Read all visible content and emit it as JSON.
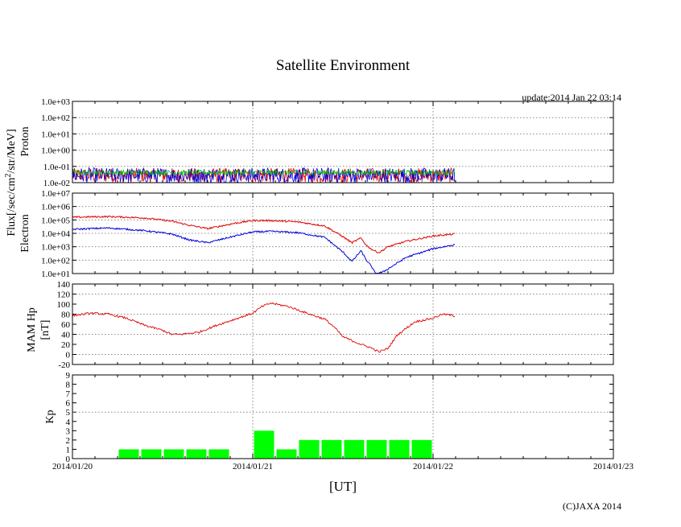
{
  "title": "Satellite Environment",
  "update": "update:2014 Jan 22 03:14",
  "copyright": "(C)JAXA 2014",
  "shared_ylabel": "Flux[/sec/cm<sup>2</sup>/str/MeV]",
  "shared_ylabel_text": "Flux[/sec/cm2/str/MeV]",
  "colors": {
    "red": "#e00000",
    "blue": "#0000dd",
    "green": "#00c000",
    "kp": "#00ff00",
    "grid": "#888888"
  },
  "chart_data": [
    {
      "type": "line",
      "panel": "Proton",
      "ylabel": "Proton",
      "yscale": "log",
      "ylim": [
        0.01,
        1000
      ],
      "yticks": [
        "1.0e-02",
        "1.0e-01",
        "1.0e+00",
        "1.0e+01",
        "1.0e+02",
        "1.0e+03"
      ],
      "xlim": [
        "2014/01/20",
        "2014/01/23"
      ],
      "data_end_day": 2.12,
      "series": [
        {
          "name": "red",
          "color": "#e00000",
          "baseline": 0.03,
          "note": "noisy near floor"
        },
        {
          "name": "blue",
          "color": "#0000dd",
          "baseline": 0.07
        },
        {
          "name": "green",
          "color": "#00c000",
          "baseline": 0.07
        }
      ]
    },
    {
      "type": "line",
      "panel": "Electron",
      "ylabel": "Electron",
      "yscale": "log",
      "ylim": [
        10,
        10000000
      ],
      "yticks": [
        "1.0e+01",
        "1.0e+02",
        "1.0e+03",
        "1.0e+04",
        "1.0e+05",
        "1.0e+06",
        "1.0e+07"
      ],
      "series": [
        {
          "name": "red",
          "color": "#e00000",
          "x": [
            0,
            0.2,
            0.4,
            0.55,
            0.65,
            0.75,
            0.9,
            1.0,
            1.1,
            1.25,
            1.4,
            1.5,
            1.55,
            1.6,
            1.63,
            1.66,
            1.7,
            1.75,
            1.85,
            2.0,
            2.12
          ],
          "y": [
            5.2,
            5.25,
            5.15,
            4.9,
            4.6,
            4.35,
            4.75,
            4.95,
            4.95,
            4.85,
            4.55,
            3.75,
            3.3,
            3.65,
            3.1,
            2.8,
            2.55,
            3.0,
            3.4,
            3.8,
            3.95
          ]
        },
        {
          "name": "blue",
          "color": "#0000dd",
          "x": [
            0,
            0.2,
            0.4,
            0.55,
            0.65,
            0.75,
            0.9,
            1.0,
            1.1,
            1.25,
            1.4,
            1.5,
            1.55,
            1.6,
            1.63,
            1.66,
            1.68,
            1.72,
            1.78,
            1.85,
            2.0,
            2.12
          ],
          "y": [
            4.3,
            4.4,
            4.2,
            3.95,
            3.5,
            3.3,
            3.8,
            4.1,
            4.15,
            4.05,
            3.7,
            2.6,
            1.9,
            2.7,
            2.0,
            1.5,
            1.0,
            1.1,
            1.6,
            2.2,
            2.85,
            3.15
          ]
        }
      ]
    },
    {
      "type": "line",
      "panel": "MAM Hp",
      "ylabel_line1": "MAM Hp",
      "ylabel_line2": "[nT]",
      "ylim": [
        -20,
        140
      ],
      "yticks": [
        "-20",
        "0",
        "20",
        "40",
        "60",
        "80",
        "100",
        "120",
        "140"
      ],
      "series": [
        {
          "name": "Hp",
          "color": "#e00000",
          "x": [
            0,
            0.1,
            0.2,
            0.3,
            0.4,
            0.5,
            0.55,
            0.6,
            0.7,
            0.8,
            0.9,
            1.0,
            1.05,
            1.1,
            1.2,
            1.3,
            1.4,
            1.45,
            1.5,
            1.6,
            1.65,
            1.7,
            1.75,
            1.8,
            1.85,
            1.9,
            2.0,
            2.05,
            2.1,
            2.12
          ],
          "y": [
            77,
            82,
            80,
            72,
            58,
            48,
            40,
            40,
            44,
            58,
            70,
            82,
            95,
            102,
            95,
            82,
            70,
            55,
            35,
            20,
            14,
            5,
            12,
            38,
            52,
            65,
            72,
            80,
            78,
            76
          ]
        }
      ]
    },
    {
      "type": "bar",
      "panel": "Kp",
      "ylabel": "Kp",
      "ylim": [
        0,
        9
      ],
      "yticks": [
        "0",
        "1",
        "2",
        "3",
        "4",
        "5",
        "6",
        "7",
        "8",
        "9"
      ],
      "bar_width_days": 0.125,
      "start_days": [
        0.25,
        0.375,
        0.5,
        0.625,
        0.75,
        1.0,
        1.125,
        1.25,
        1.375,
        1.5,
        1.625,
        1.75,
        1.875
      ],
      "values": [
        1,
        1,
        1,
        1,
        1,
        3,
        1,
        2,
        2,
        2,
        2,
        2,
        2
      ],
      "threshold_line": 5
    }
  ],
  "xticks": [
    "2014/01/20",
    "2014/01/21",
    "2014/01/22",
    "2014/01/23"
  ],
  "xlabel": "[UT]"
}
